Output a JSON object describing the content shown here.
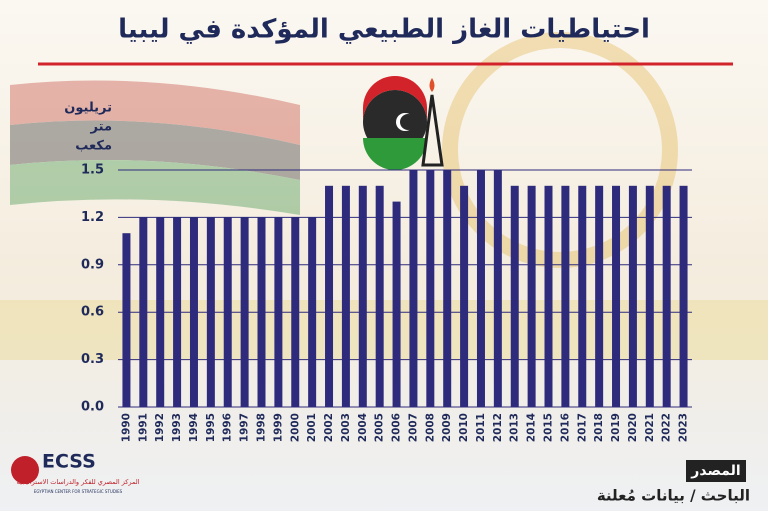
{
  "chart_data": {
    "type": "bar",
    "title": "احتياطيات الغاز الطبيعي المؤكدة في ليبيا",
    "ylabel": [
      "تريليون",
      "متر",
      "مكعب"
    ],
    "categories": [
      "1990",
      "1991",
      "1992",
      "1993",
      "1994",
      "1995",
      "1996",
      "1997",
      "1998",
      "1999",
      "2000",
      "2001",
      "2002",
      "2003",
      "2004",
      "2005",
      "2006",
      "2007",
      "2008",
      "2009",
      "2010",
      "2011",
      "2012",
      "2013",
      "2014",
      "2015",
      "2016",
      "2017",
      "2018",
      "2019",
      "2020",
      "2021",
      "2022",
      "2023"
    ],
    "values": [
      1.1,
      1.2,
      1.2,
      1.2,
      1.2,
      1.2,
      1.2,
      1.2,
      1.2,
      1.2,
      1.2,
      1.2,
      1.4,
      1.4,
      1.4,
      1.4,
      1.3,
      1.5,
      1.5,
      1.5,
      1.4,
      1.5,
      1.5,
      1.4,
      1.4,
      1.4,
      1.4,
      1.4,
      1.4,
      1.4,
      1.4,
      1.4,
      1.4,
      1.4
    ],
    "color": "#2f2b7c",
    "ylim": [
      0,
      1.5
    ],
    "yticks": [
      {
        "value": 0,
        "label": "0.0"
      },
      0.3,
      0.6,
      0.9,
      1.2,
      1.5
    ],
    "grid": true,
    "source_label": "المصدر",
    "source": "الباحث / بيانات مُعلنة"
  },
  "logo": {
    "name": "ECSS",
    "arabic": "المركز المصري للفكر والدراسات الاستراتيجية",
    "english": "EGYPTIAN CENTER FOR STRATEGIC STUDIES"
  }
}
